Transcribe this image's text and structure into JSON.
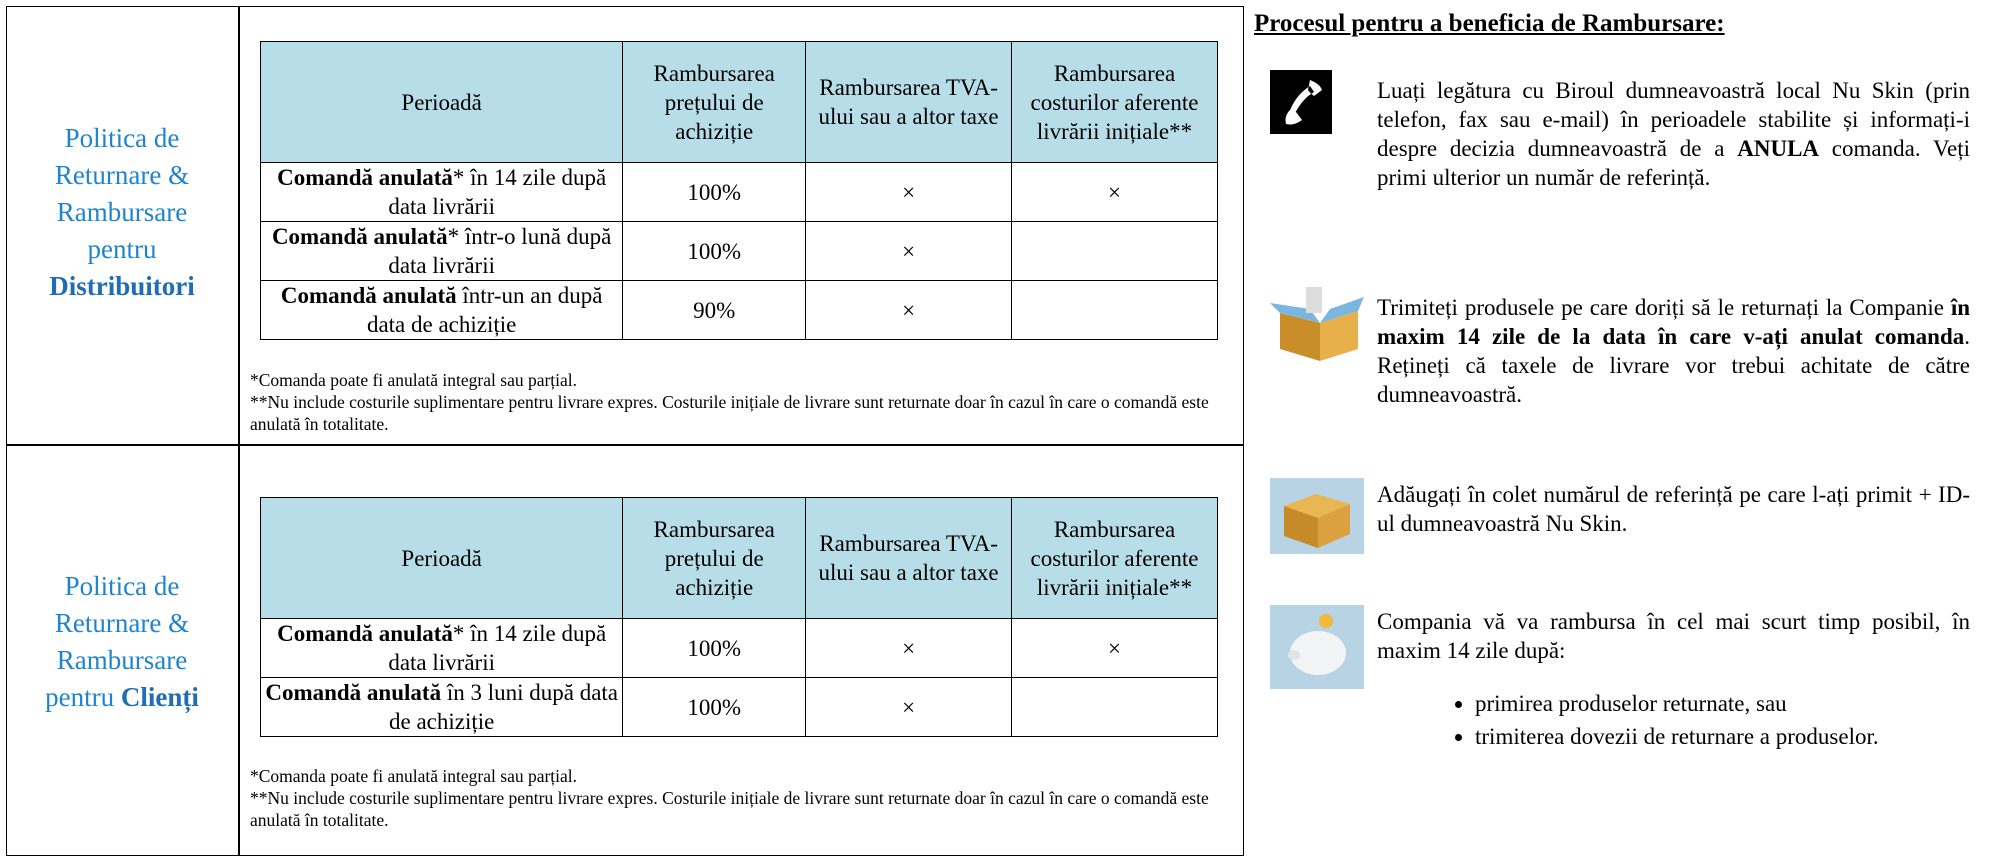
{
  "sections": [
    {
      "label": "Politica de Returnare & Rambursare pentru",
      "label_bold": "Distribuitori",
      "table": {
        "header": [
          "Perioadă",
          "Rambursarea prețului de achiziție",
          "Rambursarea TVA-ului sau a altor taxe",
          "Rambursarea costurilor aferente livrării inițiale**"
        ],
        "rows": [
          {
            "period_bold": "Comandă anulată",
            "period": "* în 14 zile după data livrării",
            "cells": [
              "100%",
              "×",
              "×"
            ]
          },
          {
            "period_bold": "Comandă anulată",
            "period": "* într-o lună după data livrării",
            "cells": [
              "100%",
              "×"
            ]
          },
          {
            "period_bold": "Comandă anulată",
            "period": " într-un an după data de achiziție",
            "cells": [
              "90%",
              "×"
            ]
          }
        ]
      },
      "notes": [
        "*Comanda poate fi anulată integral sau parțial.",
        "**Nu include costurile suplimentare pentru livrare expres. Costurile inițiale de livrare sunt returnate doar în cazul în care o comandă este anulată în totalitate."
      ]
    },
    {
      "label": "Politica de Returnare & Rambursare pentru",
      "label_bold": "Clienți",
      "table": {
        "header": [
          "Perioadă",
          "Rambursarea prețului de achiziție",
          "Rambursarea TVA-ului sau a altor taxe",
          "Rambursarea costurilor aferente livrării inițiale**"
        ],
        "rows": [
          {
            "period_bold": "Comandă anulată",
            "period": "* în 14 zile după data livrării",
            "cells": [
              "100%",
              "×",
              "×"
            ]
          },
          {
            "period_bold": "Comandă anulată",
            "period": " în 3 luni după data de achiziție",
            "cells": [
              "100%",
              "×"
            ]
          }
        ]
      },
      "notes": [
        "*Comanda poate fi anulată integral sau parțial.",
        "**Nu include costurile suplimentare pentru livrare expres. Costurile inițiale de livrare sunt returnate doar în cazul în care o comandă este anulată în totalitate."
      ]
    }
  ],
  "process": {
    "title": "Procesul pentru a beneficia de Rambursare:",
    "steps": [
      {
        "parts": [
          {
            "text": "Luați legătura cu Biroul dumneavoastră local Nu Skin (prin telefon, fax sau e-mail) în perioadele stabilite și informați-i despre decizia dumneavoastră de a "
          },
          {
            "text": "ANULA",
            "bold": true
          },
          {
            "text": " comanda. Veți primi ulterior un număr de referință."
          }
        ]
      },
      {
        "parts": [
          {
            "text": "Trimiteți produsele pe care doriți să le returnați la Companie "
          },
          {
            "text": "în maxim 14 zile de la data în care v-ați anulat comanda",
            "bold": true
          },
          {
            "text": ". Rețineți că taxele de livrare vor trebui achitate de către dumneavoastră."
          }
        ]
      },
      {
        "parts": [
          {
            "text": "Adăugați în colet numărul de referință pe care l-ați primit + ID-ul dumneavoastră Nu Skin."
          }
        ]
      },
      {
        "parts": [
          {
            "text": "Compania vă va rambursa în cel mai scurt timp posibil, în maxim 14 zile după:"
          }
        ],
        "bullets": [
          "primirea produselor returnate, sau",
          "trimiterea dovezii de returnare a produselor."
        ]
      }
    ]
  }
}
